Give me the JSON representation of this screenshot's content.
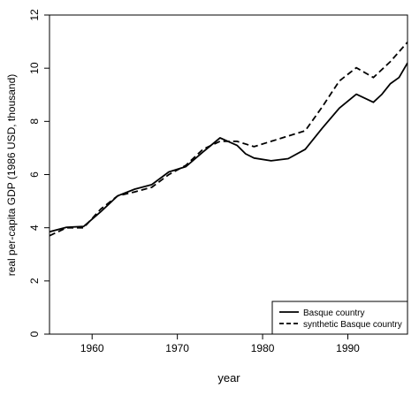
{
  "chart_data": {
    "type": "line",
    "title": "",
    "xlabel": "year",
    "ylabel": "real per-capita GDP (1986 USD, thousand)",
    "xlim": [
      1955,
      1997
    ],
    "ylim": [
      0,
      12
    ],
    "xticks": [
      1960,
      1970,
      1980,
      1990
    ],
    "yticks": [
      0,
      2,
      4,
      6,
      8,
      10,
      12
    ],
    "grid": false,
    "legend_position": "bottom-right",
    "series": [
      {
        "name": "Basque country",
        "line_style": "solid",
        "color": "#000000",
        "x": [
          1955,
          1957,
          1959,
          1961,
          1963,
          1965,
          1967,
          1969,
          1971,
          1973,
          1975,
          1977,
          1978,
          1979,
          1981,
          1983,
          1985,
          1987,
          1989,
          1991,
          1993,
          1994,
          1995,
          1996,
          1997
        ],
        "y": [
          3.85,
          4.02,
          4.05,
          4.6,
          5.2,
          5.45,
          5.62,
          6.1,
          6.3,
          6.85,
          7.38,
          7.1,
          6.78,
          6.62,
          6.52,
          6.6,
          6.95,
          7.75,
          8.5,
          9.02,
          8.72,
          9.02,
          9.42,
          9.65,
          10.2
        ]
      },
      {
        "name": "synthetic Basque country",
        "line_style": "dashed",
        "color": "#000000",
        "x": [
          1955,
          1957,
          1959,
          1961,
          1963,
          1965,
          1967,
          1969,
          1971,
          1973,
          1975,
          1977,
          1979,
          1981,
          1983,
          1985,
          1987,
          1989,
          1991,
          1993,
          1995,
          1997
        ],
        "y": [
          3.7,
          4.0,
          4.0,
          4.7,
          5.2,
          5.35,
          5.52,
          6.0,
          6.35,
          6.95,
          7.25,
          7.25,
          7.05,
          7.25,
          7.45,
          7.65,
          8.55,
          9.52,
          10.02,
          9.65,
          10.25,
          10.98
        ]
      }
    ]
  }
}
